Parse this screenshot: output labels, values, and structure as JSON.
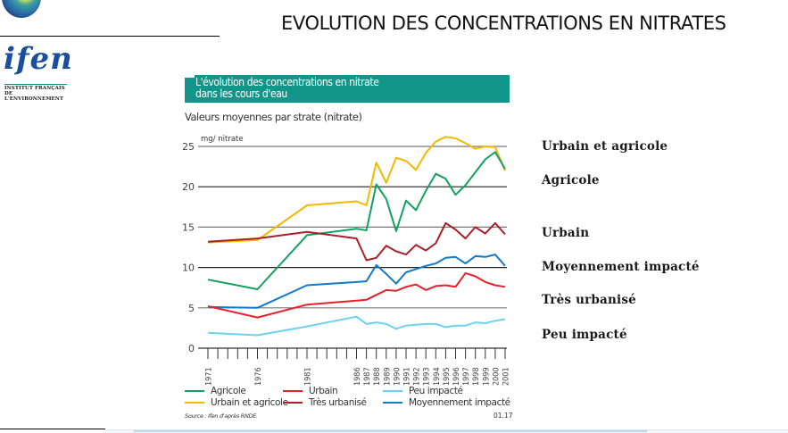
{
  "slide": {
    "title": "EVOLUTION DES CONCENTRATIONS EN NITRATES",
    "logo": {
      "name": "ifen",
      "subtitle_line1": "INSTITUT FRANÇAIS",
      "subtitle_line2": "DE L'ENVIRONNEMENT"
    },
    "right_labels": [
      "Urbain et agricole",
      "Agricole",
      "Urbain",
      "Moyennement impacté",
      "Très urbanisé",
      "Peu impacté"
    ]
  },
  "chart_data": {
    "type": "line",
    "title_line1": "L'évolution des concentrations en nitrate",
    "title_line2": "dans les cours d'eau",
    "subtitle": "Valeurs moyennes par strate (nitrate)",
    "ylabel": "mg/ nitrate",
    "xlabel": "",
    "ylim": [
      0,
      25
    ],
    "yticks": [
      0,
      5,
      10,
      15,
      20,
      25
    ],
    "grid": true,
    "banner_color": "#13968a",
    "x": [
      1971,
      1976,
      1981,
      1986,
      1987,
      1988,
      1989,
      1990,
      1991,
      1992,
      1993,
      1994,
      1995,
      1996,
      1997,
      1998,
      1999,
      2000,
      2001
    ],
    "xtick_labels": [
      "1971",
      "1976",
      "1981",
      "1986",
      "1987",
      "1988",
      "1989",
      "1990",
      "1991",
      "1992",
      "1993",
      "1994",
      "1995",
      "1996",
      "1997",
      "1998",
      "1999",
      "2000",
      "2001"
    ],
    "series": [
      {
        "name": "Urbain et agricole",
        "color": "#f5b800",
        "values": [
          13.1,
          13.4,
          17.7,
          18.2,
          17.7,
          23.0,
          20.5,
          23.6,
          23.2,
          22.1,
          24.2,
          25.6,
          26.2,
          26.0,
          25.4,
          24.7,
          25.0,
          24.9,
          22.0
        ]
      },
      {
        "name": "Agricole",
        "color": "#14a060",
        "values": [
          8.5,
          7.3,
          14.0,
          14.8,
          14.6,
          20.3,
          18.5,
          14.5,
          18.3,
          17.1,
          19.5,
          21.6,
          21.0,
          19.0,
          20.2,
          21.8,
          23.4,
          24.3,
          22.2
        ]
      },
      {
        "name": "Très urbanisé",
        "color": "#a8212a",
        "values": [
          13.2,
          13.6,
          14.4,
          13.6,
          10.9,
          11.2,
          12.7,
          12.0,
          11.6,
          12.8,
          12.1,
          13.0,
          15.5,
          14.7,
          13.6,
          15.0,
          14.2,
          15.5,
          14.1
        ]
      },
      {
        "name": "Moyennement impacté",
        "color": "#1478c8",
        "values": [
          5.1,
          5.0,
          7.8,
          8.2,
          8.3,
          10.3,
          9.2,
          8.0,
          9.4,
          9.8,
          10.2,
          10.5,
          11.2,
          11.3,
          10.5,
          11.4,
          11.3,
          11.6,
          10.2
        ]
      },
      {
        "name": "Urbain",
        "color": "#e8202a",
        "values": [
          5.2,
          3.8,
          5.4,
          5.9,
          6.0,
          6.6,
          7.2,
          7.1,
          7.6,
          7.9,
          7.2,
          7.7,
          7.8,
          7.6,
          9.3,
          8.9,
          8.2,
          7.8,
          7.6
        ]
      },
      {
        "name": "Peu impacté",
        "color": "#6cd2f0",
        "values": [
          1.9,
          1.6,
          2.7,
          3.9,
          3.0,
          3.2,
          3.0,
          2.4,
          2.8,
          2.9,
          3.0,
          3.0,
          2.6,
          2.8,
          2.8,
          3.2,
          3.1,
          3.4,
          3.6
        ]
      }
    ],
    "legend": [
      {
        "label": "Agricole",
        "color": "#14a060"
      },
      {
        "label": "Urbain et agricole",
        "color": "#f5b800"
      },
      {
        "label": "Urbain",
        "color": "#e8202a"
      },
      {
        "label": "Très urbanisé",
        "color": "#a8212a"
      },
      {
        "label": "Peu impacté",
        "color": "#6cd2f0"
      },
      {
        "label": "Moyennement impacté",
        "color": "#1478c8"
      }
    ],
    "legend_placement": "bottom",
    "source": "Source : Ifen d'après RNDE.",
    "reference": "01.17"
  }
}
